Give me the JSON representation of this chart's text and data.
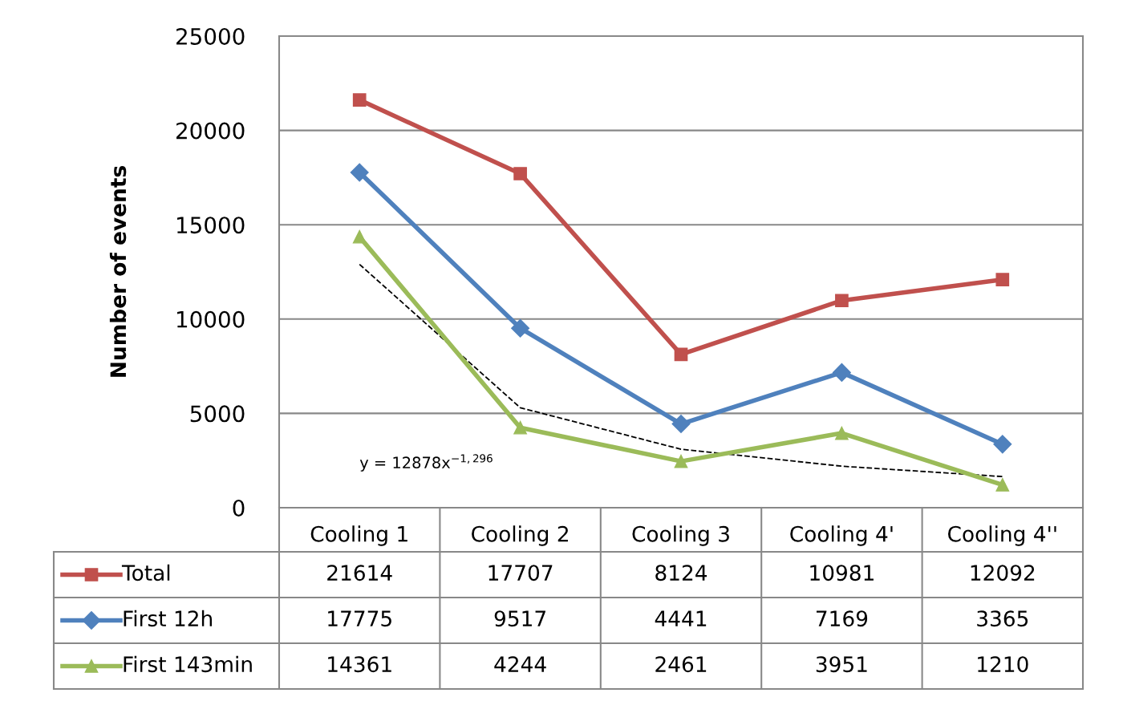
{
  "chart_data": {
    "type": "line",
    "ylabel": "Number of events",
    "categories": [
      "Cooling 1",
      "Cooling 2",
      "Cooling 3",
      "Cooling 4'",
      "Cooling 4''"
    ],
    "series": [
      {
        "name": "Total",
        "color": "#c0504d",
        "marker": "square",
        "values": [
          21614,
          17707,
          8124,
          10981,
          12092
        ]
      },
      {
        "name": "First 12h",
        "color": "#4f81bd",
        "marker": "diamond",
        "values": [
          17775,
          9517,
          4441,
          7169,
          3365
        ]
      },
      {
        "name": "First 143min",
        "color": "#9bbb59",
        "marker": "triangle",
        "values": [
          14361,
          4244,
          2461,
          3951,
          1210
        ]
      },
      {
        "type": "line",
        "color": "#000000",
        "marker": "none",
        "line_style": "dashed",
        "x": [
          "Cooling 1",
          "Cooling 2",
          "Cooling 3",
          "Cooling 4'",
          "Cooling 4''"
        ],
        "values": [
          12900,
          5300,
          3100,
          2200,
          1650
        ],
        "value_labels": [
          null,
          null,
          null,
          null,
          null
        ]
      }
    ],
    "ylim": [
      0,
      25000
    ],
    "yticks": [
      0,
      5000,
      10000,
      15000,
      20000,
      25000
    ],
    "grid": "y",
    "data_labels": true,
    "legend": "bottom",
    "line_style": "solid",
    "annotations": [
      "y = 12878x$^{−1,296}$"
    ]
  }
}
